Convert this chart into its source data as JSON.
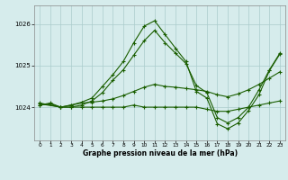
{
  "background_color": "#d6ecec",
  "grid_color": "#aacccc",
  "line_color": "#1a5e00",
  "xlabel": "Graphe pression niveau de la mer (hPa)",
  "yticks": [
    1024,
    1025,
    1026
  ],
  "xlim": [
    -0.5,
    23.5
  ],
  "ylim": [
    1023.2,
    1026.45
  ],
  "xticks": [
    0,
    1,
    2,
    3,
    4,
    5,
    6,
    7,
    8,
    9,
    10,
    11,
    12,
    13,
    14,
    15,
    16,
    17,
    18,
    19,
    20,
    21,
    22,
    23
  ],
  "series": [
    {
      "x": [
        0,
        1,
        2,
        3,
        4,
        5,
        6,
        7,
        8,
        9,
        10,
        11,
        12,
        13,
        14,
        15,
        16,
        17,
        18,
        19,
        20,
        21,
        22,
        23
      ],
      "y": [
        1024.05,
        1024.1,
        1024.0,
        1024.0,
        1024.0,
        1024.0,
        1024.0,
        1024.0,
        1024.0,
        1024.05,
        1024.0,
        1024.0,
        1024.0,
        1024.0,
        1024.0,
        1024.0,
        1023.95,
        1023.9,
        1023.9,
        1023.95,
        1024.0,
        1024.05,
        1024.1,
        1024.15
      ]
    },
    {
      "x": [
        0,
        1,
        2,
        3,
        4,
        5,
        6,
        7,
        8,
        9,
        10,
        11,
        12,
        13,
        14,
        15,
        16,
        17,
        18,
        19,
        20,
        21,
        22,
        23
      ],
      "y": [
        1024.05,
        1024.08,
        1024.0,
        1024.05,
        1024.1,
        1024.12,
        1024.15,
        1024.2,
        1024.28,
        1024.38,
        1024.48,
        1024.55,
        1024.5,
        1024.48,
        1024.45,
        1024.42,
        1024.38,
        1024.3,
        1024.25,
        1024.32,
        1024.42,
        1024.55,
        1024.7,
        1024.85
      ]
    },
    {
      "x": [
        0,
        2,
        3,
        4,
        5,
        6,
        7,
        8,
        9,
        10,
        11,
        12,
        13,
        14,
        15,
        16,
        17,
        18,
        19,
        20,
        21,
        22,
        23
      ],
      "y": [
        1024.1,
        1024.0,
        1024.0,
        1024.05,
        1024.15,
        1024.35,
        1024.65,
        1024.9,
        1025.25,
        1025.6,
        1025.85,
        1025.55,
        1025.3,
        1025.05,
        1024.52,
        1024.35,
        1023.75,
        1023.62,
        1023.75,
        1024.0,
        1024.42,
        1024.9,
        1025.3
      ]
    },
    {
      "x": [
        0,
        2,
        3,
        4,
        5,
        6,
        7,
        8,
        9,
        10,
        11,
        12,
        13,
        14,
        15,
        16,
        17,
        18,
        19,
        20,
        21,
        22,
        23
      ],
      "y": [
        1024.08,
        1024.0,
        1024.05,
        1024.12,
        1024.22,
        1024.5,
        1024.78,
        1025.1,
        1025.55,
        1025.95,
        1026.08,
        1025.75,
        1025.42,
        1025.1,
        1024.38,
        1024.22,
        1023.6,
        1023.48,
        1023.62,
        1023.92,
        1024.3,
        1024.88,
        1025.28
      ]
    }
  ]
}
